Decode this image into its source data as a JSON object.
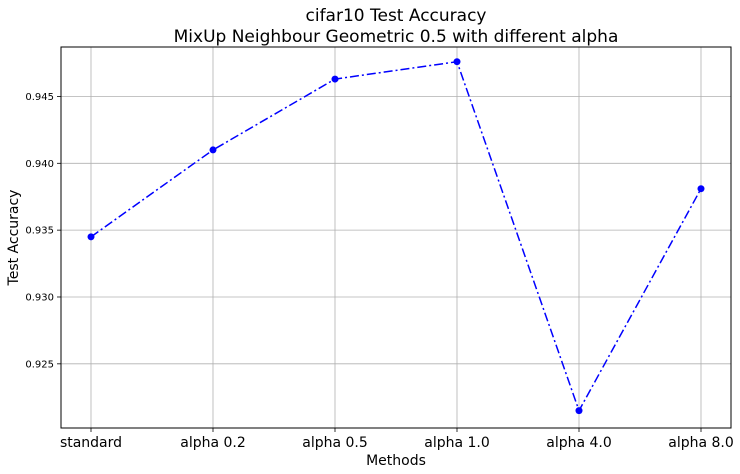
{
  "chart_data": {
    "type": "line",
    "title": "cifar10 Test Accuracy",
    "subtitle": "MixUp Neighbour Geometric 0.5 with different alpha",
    "xlabel": "Methods",
    "ylabel": "Test Accuracy",
    "categories": [
      "standard",
      "alpha 0.2",
      "alpha 0.5",
      "alpha 1.0",
      "alpha 4.0",
      "alpha 8.0"
    ],
    "values": [
      0.9345,
      0.941,
      0.9463,
      0.9476,
      0.9215,
      0.9381
    ],
    "yticks": [
      0.925,
      0.93,
      0.935,
      0.94,
      0.945
    ],
    "ytick_labels": [
      "0.925",
      "0.930",
      "0.935",
      "0.940",
      "0.945"
    ],
    "ylim": [
      0.9202,
      0.9487
    ],
    "grid": true,
    "line_color": "#0000ff",
    "line_style": "dash-dot",
    "marker": "circle"
  }
}
